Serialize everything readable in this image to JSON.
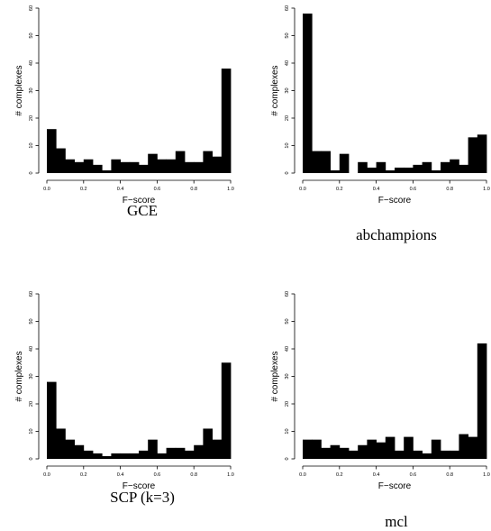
{
  "chart_data": [
    {
      "type": "bar",
      "histogram": true,
      "caption": "GCE",
      "xlabel": "F−score",
      "ylabel": "# complexes",
      "xlim": [
        0,
        1
      ],
      "ylim": [
        0,
        60
      ],
      "x_ticks": [
        "0.0",
        "0.2",
        "0.4",
        "0.6",
        "0.8",
        "1.0"
      ],
      "y_ticks": [
        "0",
        "10",
        "20",
        "30",
        "40",
        "50",
        "60"
      ],
      "bin_width": 0.05,
      "values": [
        16,
        9,
        5,
        4,
        5,
        3,
        1,
        5,
        4,
        4,
        3,
        7,
        5,
        5,
        8,
        4,
        4,
        8,
        6,
        38
      ]
    },
    {
      "type": "bar",
      "histogram": true,
      "caption": "abchampions",
      "xlabel": "F−score",
      "ylabel": "# complexes",
      "xlim": [
        0,
        1
      ],
      "ylim": [
        0,
        60
      ],
      "x_ticks": [
        "0.0",
        "0.2",
        "0.4",
        "0.6",
        "0.8",
        "1.0"
      ],
      "y_ticks": [
        "0",
        "10",
        "20",
        "30",
        "40",
        "50",
        "60"
      ],
      "bin_width": 0.05,
      "values": [
        58,
        8,
        8,
        1,
        7,
        0,
        4,
        2,
        4,
        1,
        2,
        2,
        3,
        4,
        1,
        4,
        5,
        3,
        13,
        14
      ]
    },
    {
      "type": "bar",
      "histogram": true,
      "caption": "SCP (k=3)",
      "xlabel": "F−score",
      "ylabel": "# complexes",
      "xlim": [
        0,
        1
      ],
      "ylim": [
        0,
        60
      ],
      "x_ticks": [
        "0.0",
        "0.2",
        "0.4",
        "0.6",
        "0.8",
        "1.0"
      ],
      "y_ticks": [
        "0",
        "10",
        "20",
        "30",
        "40",
        "50",
        "60"
      ],
      "bin_width": 0.05,
      "values": [
        28,
        11,
        7,
        5,
        3,
        2,
        1,
        2,
        2,
        2,
        3,
        7,
        2,
        4,
        4,
        3,
        5,
        11,
        7,
        35
      ]
    },
    {
      "type": "bar",
      "histogram": true,
      "caption": "mcl",
      "xlabel": "F−score",
      "ylabel": "# complexes",
      "xlim": [
        0,
        1
      ],
      "ylim": [
        0,
        60
      ],
      "x_ticks": [
        "0.0",
        "0.2",
        "0.4",
        "0.6",
        "0.8",
        "1.0"
      ],
      "y_ticks": [
        "0",
        "10",
        "20",
        "30",
        "40",
        "50",
        "60"
      ],
      "bin_width": 0.05,
      "values": [
        7,
        7,
        4,
        5,
        4,
        3,
        5,
        7,
        6,
        8,
        3,
        8,
        3,
        2,
        7,
        3,
        3,
        9,
        8,
        42
      ]
    }
  ]
}
